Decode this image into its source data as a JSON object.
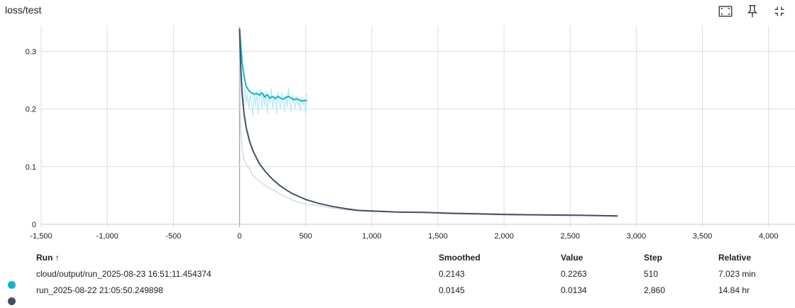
{
  "card": {
    "title": "loss/test"
  },
  "toolbar": {
    "fit_icon": "fit-domain-icon",
    "pin_icon": "pin-icon",
    "collapse_icon": "fullscreen-exit-icon"
  },
  "chart_data": {
    "type": "line",
    "title": "loss/test",
    "xlabel": "",
    "ylabel": "",
    "xlim": [
      -1500,
      4200
    ],
    "ylim": [
      -0.005,
      0.345
    ],
    "x_ticks": [
      -1500,
      -1000,
      -500,
      0,
      500,
      1000,
      1500,
      2000,
      2500,
      3000,
      3500,
      4000
    ],
    "x_tick_labels": [
      "-1,500",
      "-1,000",
      "-500",
      "0",
      "500",
      "1,000",
      "1,500",
      "2,000",
      "2,500",
      "3,000",
      "3,500",
      "4,000"
    ],
    "y_ticks": [
      0,
      0.1,
      0.2,
      0.3
    ],
    "y_tick_labels": [
      "0",
      "0.1",
      "0.2",
      "0.3"
    ],
    "grid": true,
    "series": [
      {
        "name": "cloud/output/run_2025-08-23 16:51:11.454374",
        "color": "#12b5cb",
        "raw_color": "#b8ecf3",
        "smoothed": [
          [
            0,
            0.34
          ],
          [
            10,
            0.31
          ],
          [
            20,
            0.28
          ],
          [
            35,
            0.255
          ],
          [
            50,
            0.24
          ],
          [
            70,
            0.232
          ],
          [
            90,
            0.228
          ],
          [
            110,
            0.226
          ],
          [
            130,
            0.227
          ],
          [
            150,
            0.224
          ],
          [
            170,
            0.228
          ],
          [
            190,
            0.221
          ],
          [
            210,
            0.225
          ],
          [
            230,
            0.219
          ],
          [
            250,
            0.222
          ],
          [
            270,
            0.218
          ],
          [
            290,
            0.222
          ],
          [
            310,
            0.219
          ],
          [
            330,
            0.217
          ],
          [
            350,
            0.22
          ],
          [
            370,
            0.222
          ],
          [
            390,
            0.219
          ],
          [
            410,
            0.216
          ],
          [
            430,
            0.218
          ],
          [
            450,
            0.216
          ],
          [
            470,
            0.214
          ],
          [
            490,
            0.215
          ],
          [
            510,
            0.2143
          ]
        ],
        "raw": [
          [
            0,
            0.345
          ],
          [
            10,
            0.25
          ],
          [
            20,
            0.22
          ],
          [
            30,
            0.205
          ],
          [
            40,
            0.235
          ],
          [
            50,
            0.21
          ],
          [
            60,
            0.228
          ],
          [
            70,
            0.2
          ],
          [
            80,
            0.225
          ],
          [
            90,
            0.212
          ],
          [
            100,
            0.188
          ],
          [
            110,
            0.23
          ],
          [
            120,
            0.205
          ],
          [
            130,
            0.232
          ],
          [
            140,
            0.19
          ],
          [
            150,
            0.22
          ],
          [
            160,
            0.235
          ],
          [
            170,
            0.198
          ],
          [
            180,
            0.228
          ],
          [
            190,
            0.205
          ],
          [
            200,
            0.232
          ],
          [
            210,
            0.192
          ],
          [
            220,
            0.225
          ],
          [
            230,
            0.21
          ],
          [
            240,
            0.236
          ],
          [
            250,
            0.2
          ],
          [
            260,
            0.218
          ],
          [
            270,
            0.222
          ],
          [
            280,
            0.19
          ],
          [
            290,
            0.23
          ],
          [
            300,
            0.212
          ],
          [
            310,
            0.2
          ],
          [
            320,
            0.228
          ],
          [
            330,
            0.215
          ],
          [
            340,
            0.195
          ],
          [
            350,
            0.226
          ],
          [
            360,
            0.203
          ],
          [
            370,
            0.238
          ],
          [
            380,
            0.21
          ],
          [
            390,
            0.195
          ],
          [
            400,
            0.226
          ],
          [
            410,
            0.214
          ],
          [
            420,
            0.2
          ],
          [
            430,
            0.224
          ],
          [
            440,
            0.205
          ],
          [
            450,
            0.215
          ],
          [
            460,
            0.196
          ],
          [
            470,
            0.222
          ],
          [
            480,
            0.207
          ],
          [
            490,
            0.218
          ],
          [
            500,
            0.19
          ],
          [
            510,
            0.2263
          ]
        ]
      },
      {
        "name": "run_2025-08-22 21:05:50.249898",
        "color": "#425066",
        "raw_color": "#d1d5dc",
        "smoothed": [
          [
            0,
            0.34
          ],
          [
            10,
            0.27
          ],
          [
            20,
            0.225
          ],
          [
            35,
            0.19
          ],
          [
            50,
            0.168
          ],
          [
            75,
            0.145
          ],
          [
            100,
            0.128
          ],
          [
            150,
            0.105
          ],
          [
            200,
            0.09
          ],
          [
            250,
            0.078
          ],
          [
            300,
            0.068
          ],
          [
            350,
            0.06
          ],
          [
            400,
            0.053
          ],
          [
            500,
            0.043
          ],
          [
            600,
            0.036
          ],
          [
            700,
            0.031
          ],
          [
            800,
            0.027
          ],
          [
            900,
            0.024
          ],
          [
            1000,
            0.023
          ],
          [
            1200,
            0.021
          ],
          [
            1400,
            0.0205
          ],
          [
            1600,
            0.019
          ],
          [
            1800,
            0.018
          ],
          [
            2000,
            0.017
          ],
          [
            2200,
            0.0165
          ],
          [
            2400,
            0.016
          ],
          [
            2600,
            0.0155
          ],
          [
            2860,
            0.0145
          ]
        ],
        "raw": [
          [
            0,
            0.34
          ],
          [
            5,
            0.2
          ],
          [
            10,
            0.16
          ],
          [
            20,
            0.13
          ],
          [
            30,
            0.118
          ],
          [
            40,
            0.11
          ],
          [
            60,
            0.1
          ],
          [
            80,
            0.095
          ],
          [
            100,
            0.085
          ],
          [
            120,
            0.08
          ],
          [
            150,
            0.075
          ],
          [
            180,
            0.07
          ],
          [
            200,
            0.066
          ],
          [
            250,
            0.06
          ],
          [
            300,
            0.053
          ],
          [
            350,
            0.047
          ],
          [
            400,
            0.042
          ],
          [
            450,
            0.038
          ],
          [
            500,
            0.035
          ],
          [
            600,
            0.032
          ],
          [
            700,
            0.028
          ],
          [
            800,
            0.025
          ],
          [
            900,
            0.023
          ],
          [
            1000,
            0.022
          ],
          [
            1200,
            0.021
          ],
          [
            1400,
            0.02
          ],
          [
            1600,
            0.018
          ],
          [
            1800,
            0.017
          ],
          [
            2000,
            0.016
          ],
          [
            2200,
            0.016
          ],
          [
            2400,
            0.015
          ],
          [
            2600,
            0.015
          ],
          [
            2860,
            0.0134
          ]
        ]
      }
    ]
  },
  "legend": {
    "headers": {
      "run": "Run ↑",
      "smoothed": "Smoothed",
      "value": "Value",
      "step": "Step",
      "relative": "Relative"
    },
    "rows": [
      {
        "name": "cloud/output/run_2025-08-23 16:51:11.454374",
        "color": "#12b5cb",
        "smoothed": "0.2143",
        "value": "0.2263",
        "step": "510",
        "relative": "7.023 min"
      },
      {
        "name": "run_2025-08-22 21:05:50.249898",
        "color": "#425066",
        "smoothed": "0.0145",
        "value": "0.0134",
        "step": "2,860",
        "relative": "14.84 hr"
      }
    ]
  }
}
